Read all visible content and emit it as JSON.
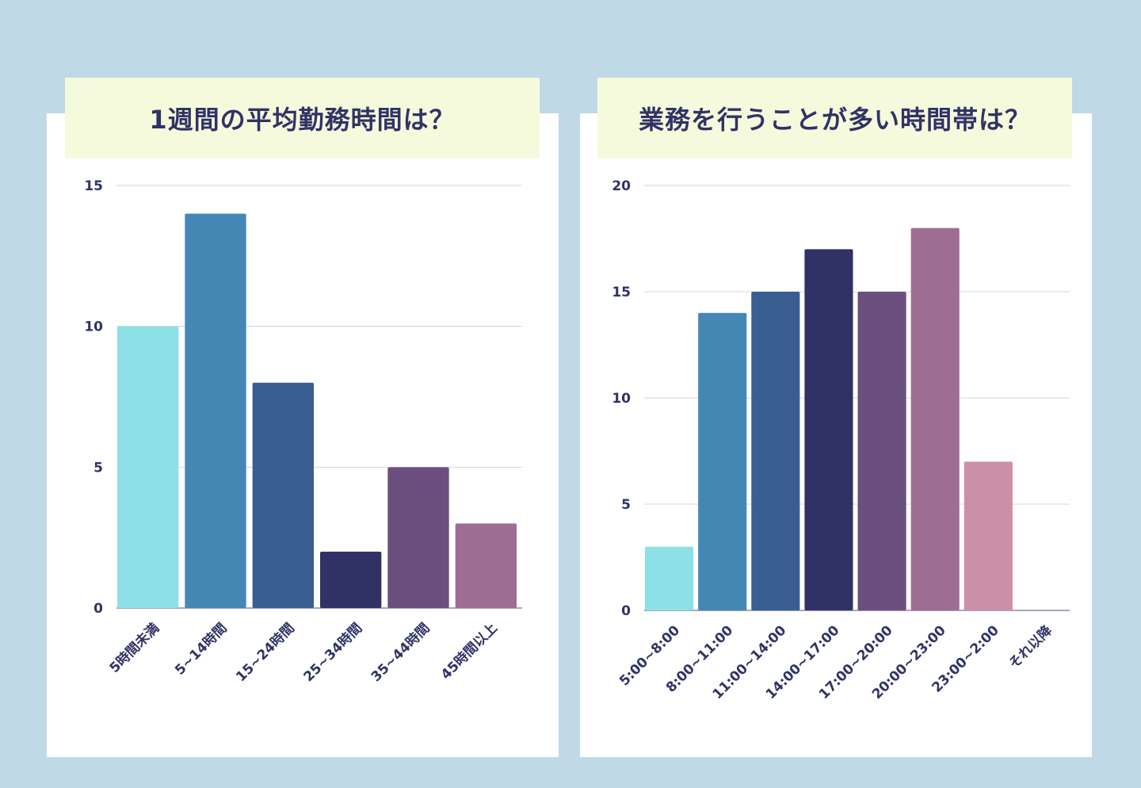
{
  "chart_data": [
    {
      "type": "bar",
      "title": "1週間の平均勤務時間は？",
      "categories": [
        "5時間未満",
        "5~14時間",
        "15~24時間",
        "25~34時間",
        "35~44時間",
        "45時間以上"
      ],
      "values": [
        10,
        14,
        8,
        2,
        5,
        3
      ],
      "colors": [
        "#8ce0e6",
        "#4487b5",
        "#3a5d92",
        "#303266",
        "#6b4f7e",
        "#9e6e92"
      ],
      "ylim": [
        0,
        15
      ],
      "yticks": [
        0,
        5,
        10,
        15
      ],
      "xlabel": "",
      "ylabel": "",
      "grid": true
    },
    {
      "type": "bar",
      "title": "業務を行うことが多い時間帯は？",
      "categories": [
        "5:00~8:00",
        "8:00~11:00",
        "11:00~14:00",
        "14:00~17:00",
        "17:00~20:00",
        "20:00~23:00",
        "23:00~2:00",
        "それ以降"
      ],
      "values": [
        3,
        14,
        15,
        17,
        15,
        18,
        7,
        0
      ],
      "colors": [
        "#8ce0e6",
        "#4487b5",
        "#3a5d92",
        "#303266",
        "#6b4f7e",
        "#9e6e92",
        "#cc8fa8",
        "#cc8fa8"
      ],
      "ylim": [
        0,
        20
      ],
      "yticks": [
        0,
        5,
        10,
        15,
        20
      ],
      "xlabel": "",
      "ylabel": "",
      "grid": true
    }
  ]
}
